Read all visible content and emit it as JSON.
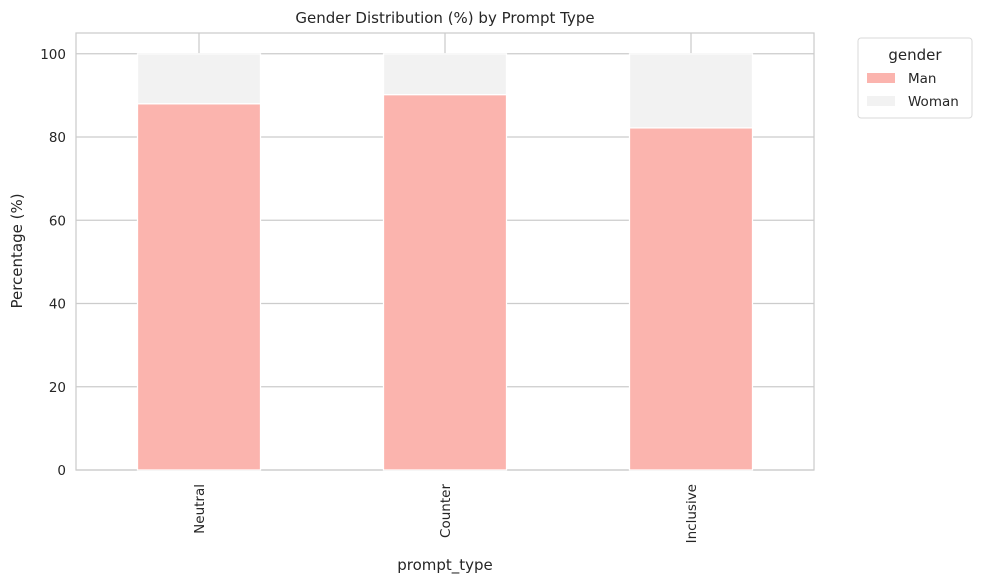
{
  "chart_data": {
    "type": "bar",
    "stacked": true,
    "title": "Gender Distribution (%) by Prompt Type",
    "xlabel": "prompt_type",
    "ylabel": "Percentage (%)",
    "categories": [
      "Neutral",
      "Counter",
      "Inclusive"
    ],
    "series": [
      {
        "name": "Man",
        "values": [
          88.0,
          90.2,
          82.2
        ],
        "color": "#fbb4ae"
      },
      {
        "name": "Woman",
        "values": [
          12.0,
          9.8,
          17.8
        ],
        "color": "#f2f2f2"
      }
    ],
    "ylim": [
      0,
      105
    ],
    "yticks": [
      0,
      20,
      40,
      60,
      80,
      100
    ],
    "grid": true,
    "legend": {
      "title": "gender",
      "placement": "outside-top-right"
    }
  }
}
